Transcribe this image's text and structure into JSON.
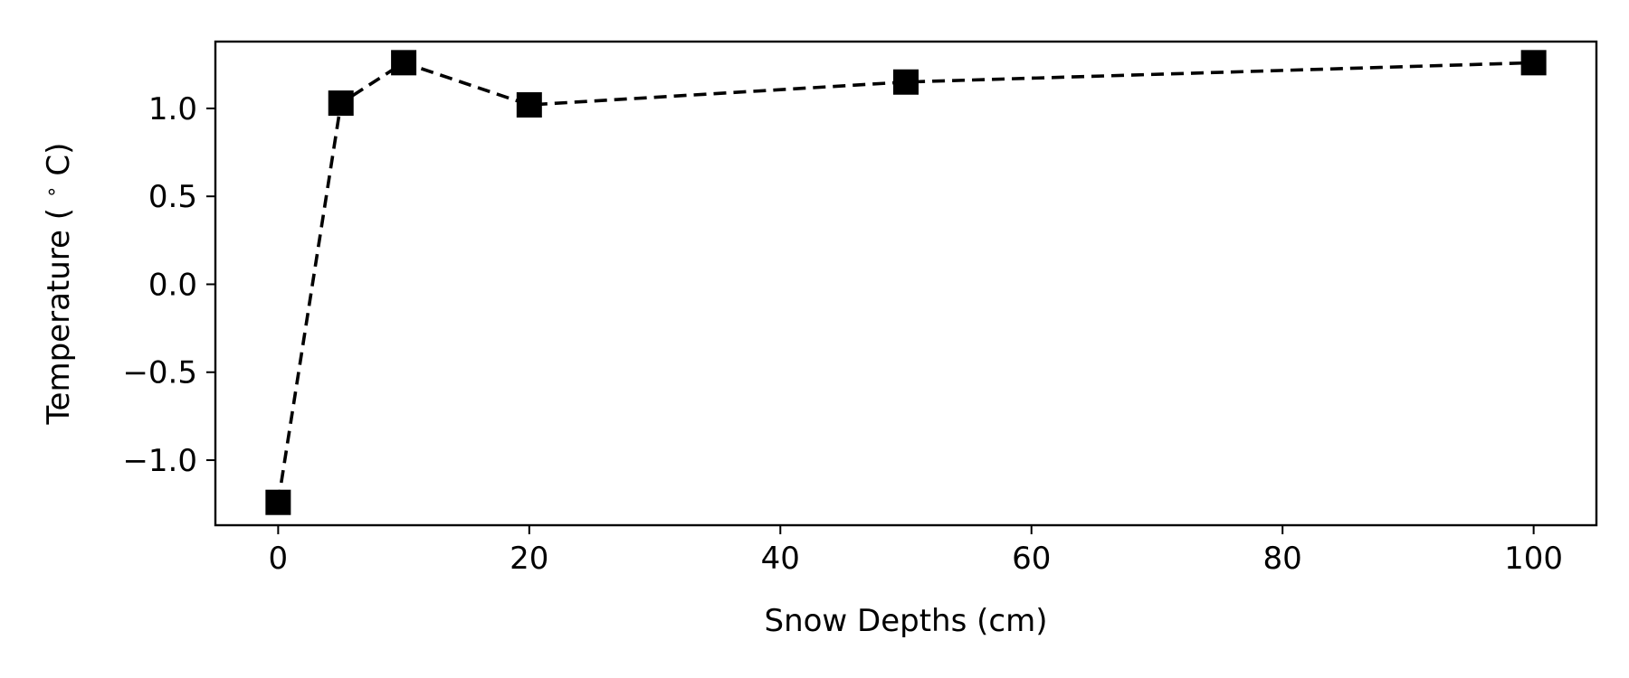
{
  "chart_data": {
    "type": "line",
    "title": "",
    "xlabel": "Snow Depths (cm)",
    "ylabel": "Temperature ($^\\circ$C)",
    "ylabel_display": [
      "Temperature (",
      "∘",
      "C)"
    ],
    "xlim": [
      -5,
      105
    ],
    "ylim": [
      -1.37,
      1.38
    ],
    "xticks": [
      0,
      20,
      40,
      60,
      80,
      100
    ],
    "xtick_labels": [
      "0",
      "20",
      "40",
      "60",
      "80",
      "100"
    ],
    "yticks": [
      -1.0,
      -0.5,
      0.0,
      0.5,
      1.0
    ],
    "ytick_labels": [
      "−1.0",
      "−0.5",
      "0.0",
      "0.5",
      "1.0"
    ],
    "grid": false,
    "series": [
      {
        "line_style": "dashed",
        "marker": "square",
        "color": "#000000",
        "points": [
          {
            "x": 0,
            "y": -1.24
          },
          {
            "x": 5,
            "y": 1.03
          },
          {
            "x": 10,
            "y": 1.26
          },
          {
            "x": 20,
            "y": 1.02
          },
          {
            "x": 50,
            "y": 1.15
          },
          {
            "x": 100,
            "y": 1.26
          }
        ]
      }
    ]
  }
}
